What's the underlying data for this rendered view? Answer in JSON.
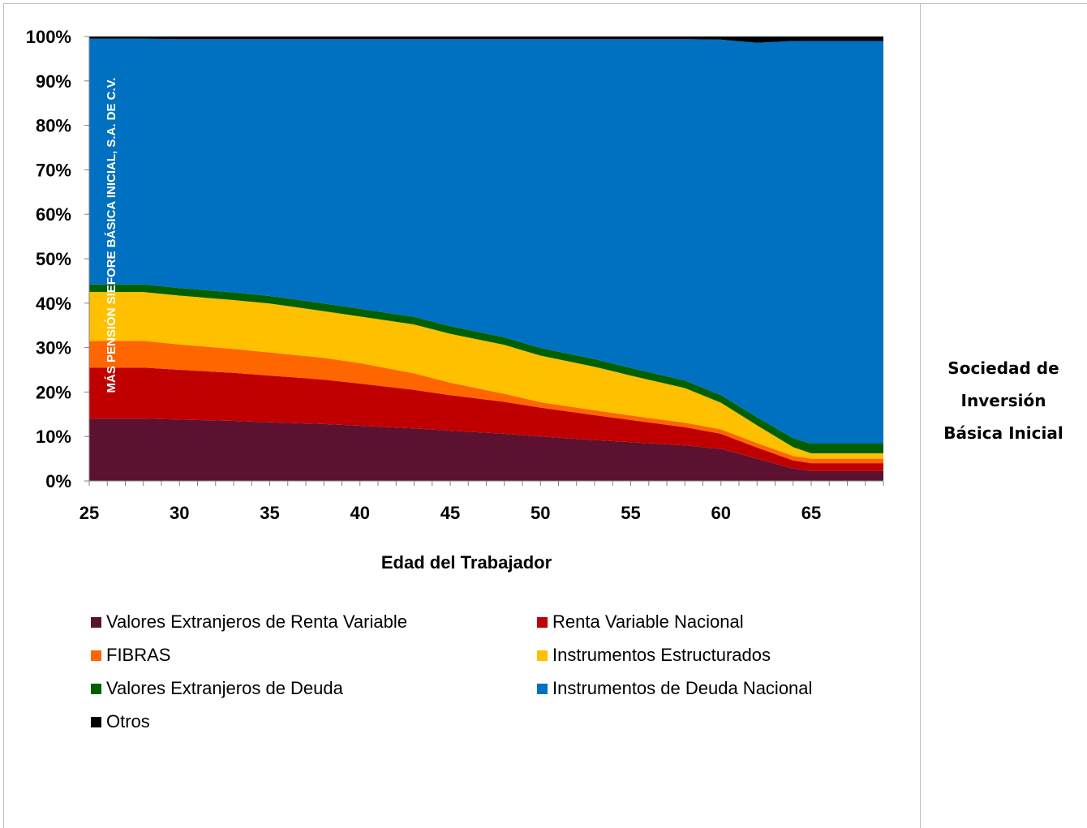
{
  "side_title": [
    "Sociedad de",
    "Inversión",
    "Básica Inicial"
  ],
  "chart_data": {
    "type": "area",
    "stacked": true,
    "percent": true,
    "annotation": "MÁS PENSIÓN SIEFORE BÁSICA INICIAL, S.A. DE C.V.",
    "xlabel": "Edad del Trabajador",
    "ylabel": "",
    "xlim": [
      25,
      69
    ],
    "ylim": [
      0,
      100
    ],
    "x_ticks": [
      25,
      30,
      35,
      40,
      45,
      50,
      55,
      60,
      65
    ],
    "y_ticks": [
      "0%",
      "10%",
      "20%",
      "30%",
      "40%",
      "50%",
      "60%",
      "70%",
      "80%",
      "90%",
      "100%"
    ],
    "x": [
      25,
      28,
      30,
      33,
      35,
      38,
      40,
      43,
      45,
      48,
      50,
      53,
      55,
      58,
      60,
      62,
      64,
      65,
      69
    ],
    "series": [
      {
        "name": "Valores Extranjeros de Renta Variable",
        "color": "#5c1130",
        "values": [
          14,
          14,
          13.8,
          13.5,
          13.2,
          12.8,
          12.4,
          11.8,
          11.3,
          10.6,
          10,
          9.2,
          8.7,
          8,
          7.2,
          5,
          2.8,
          2.2,
          2.2
        ]
      },
      {
        "name": "Renta Variable Nacional",
        "color": "#c00000",
        "values": [
          11.5,
          11.5,
          11.2,
          10.8,
          10.5,
          10,
          9.5,
          8.7,
          8,
          7.2,
          6.5,
          5.6,
          5,
          4.1,
          3.4,
          2.5,
          1.8,
          1.8,
          1.8
        ]
      },
      {
        "name": "FIBRAS",
        "color": "#ff6600",
        "values": [
          6,
          6,
          5.7,
          5.4,
          5.2,
          4.9,
          4.6,
          3.7,
          2.8,
          1.8,
          1.2,
          1.1,
          1,
          1,
          1,
          1,
          1,
          1,
          1
        ]
      },
      {
        "name": "Instrumentos Estructurados",
        "color": "#ffc000",
        "values": [
          11,
          11,
          11,
          11,
          11,
          10.5,
          10.5,
          11,
          11,
          11,
          10.5,
          9.8,
          9,
          7.8,
          6,
          4,
          2,
          1.2,
          1.2
        ]
      },
      {
        "name": "Valores Extranjeros de Deuda",
        "color": "#006000",
        "values": [
          1.7,
          1.7,
          1.7,
          1.7,
          1.7,
          1.7,
          1.7,
          1.7,
          1.7,
          1.7,
          1.7,
          1.7,
          1.7,
          1.7,
          1.7,
          1.8,
          2,
          2.2,
          2.2
        ]
      },
      {
        "name": "Instrumentos de Deuda Nacional",
        "color": "#0070c0",
        "values": [
          55.3,
          55.3,
          56,
          57,
          57.8,
          59.5,
          60.7,
          62.5,
          64.6,
          67.1,
          69.5,
          72,
          74,
          76.8,
          80,
          84.3,
          89.4,
          90.6,
          90.6
        ]
      },
      {
        "name": "Otros",
        "color": "#000000",
        "values": [
          0.5,
          0.5,
          0.6,
          0.6,
          0.6,
          0.6,
          0.6,
          0.6,
          0.6,
          0.6,
          0.6,
          0.6,
          0.6,
          0.6,
          0.7,
          1.4,
          1,
          1,
          1
        ]
      }
    ],
    "grid": false,
    "legend_position": "bottom"
  }
}
